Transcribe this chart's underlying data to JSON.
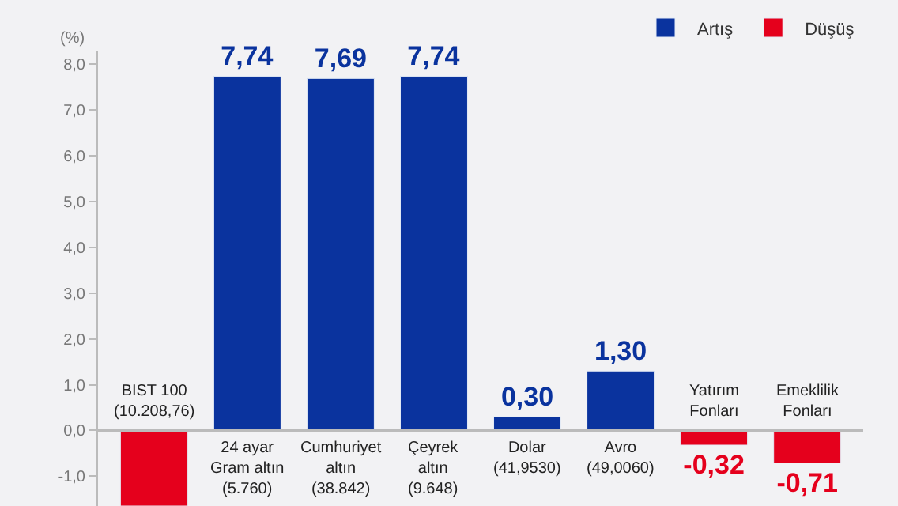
{
  "chart_data": {
    "type": "bar",
    "ylabel": "(%)",
    "categories": [
      "BIST 100\n(10.208,76)",
      "24 ayar\nGram altın\n(5.760)",
      "Cumhuriyet\naltın\n(38.842)",
      "Çeyrek\naltın\n(9.648)",
      "Dolar\n(41,9530)",
      "Avro\n(49,0060)",
      "Yatırım\nFonları",
      "Emeklilik\nFonları"
    ],
    "series": [
      {
        "name": "Artış",
        "color": "#0a339e",
        "values": [
          null,
          7.74,
          7.69,
          7.74,
          0.3,
          1.3,
          null,
          null
        ],
        "value_labels": [
          null,
          "7,74",
          "7,69",
          "7,74",
          "0,30",
          "1,30",
          null,
          null
        ]
      },
      {
        "name": "Düşüş",
        "color": "#e5001c",
        "values": [
          -1.65,
          null,
          null,
          null,
          null,
          null,
          -0.32,
          -0.71
        ],
        "value_labels": [
          null,
          null,
          null,
          null,
          null,
          null,
          "-0,32",
          "-0,71"
        ]
      }
    ],
    "ylim": [
      -1.65,
      8.3
    ],
    "yticks": [
      {
        "value": -1,
        "label": "-1,0"
      },
      {
        "value": 0,
        "label": "0,0"
      },
      {
        "value": 1,
        "label": "1,0"
      },
      {
        "value": 2,
        "label": "2,0"
      },
      {
        "value": 3,
        "label": "3,0"
      },
      {
        "value": 4,
        "label": "4,0"
      },
      {
        "value": 5,
        "label": "5,0"
      },
      {
        "value": 6,
        "label": "6,0"
      },
      {
        "value": 7,
        "label": "7,0"
      },
      {
        "value": 8,
        "label": "8,0"
      }
    ],
    "tick_labels": "y",
    "grid": false,
    "legend": "top right"
  }
}
